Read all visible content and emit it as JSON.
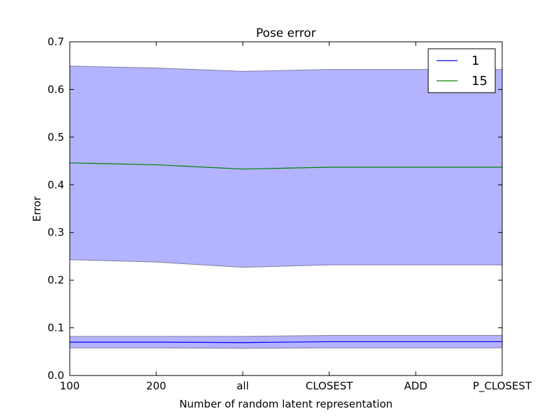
{
  "chart_data": {
    "type": "line",
    "title": "Pose error",
    "xlabel": "Number of random latent representation",
    "ylabel": "Error",
    "categories": [
      "100",
      "200",
      "all",
      "CLOSEST",
      "ADD",
      "P_CLOSEST"
    ],
    "ylim": [
      0,
      0.7
    ],
    "yticks": [
      "0.0",
      "0.1",
      "0.2",
      "0.3",
      "0.4",
      "0.5",
      "0.6",
      "0.7"
    ],
    "grid": false,
    "legend_position": "top-right",
    "band_color": "#b3b3ff",
    "series": [
      {
        "name": "1",
        "color": "#0000ff",
        "values": [
          0.07,
          0.07,
          0.069,
          0.071,
          0.071,
          0.071
        ],
        "lower": [
          0.058,
          0.058,
          0.057,
          0.058,
          0.058,
          0.058
        ],
        "upper": [
          0.082,
          0.082,
          0.082,
          0.084,
          0.084,
          0.084
        ]
      },
      {
        "name": "15",
        "color": "#008000",
        "values": [
          0.446,
          0.442,
          0.433,
          0.437,
          0.437,
          0.437
        ],
        "lower": [
          0.243,
          0.238,
          0.227,
          0.232,
          0.232,
          0.232
        ],
        "upper": [
          0.649,
          0.645,
          0.638,
          0.642,
          0.642,
          0.642
        ]
      }
    ]
  }
}
